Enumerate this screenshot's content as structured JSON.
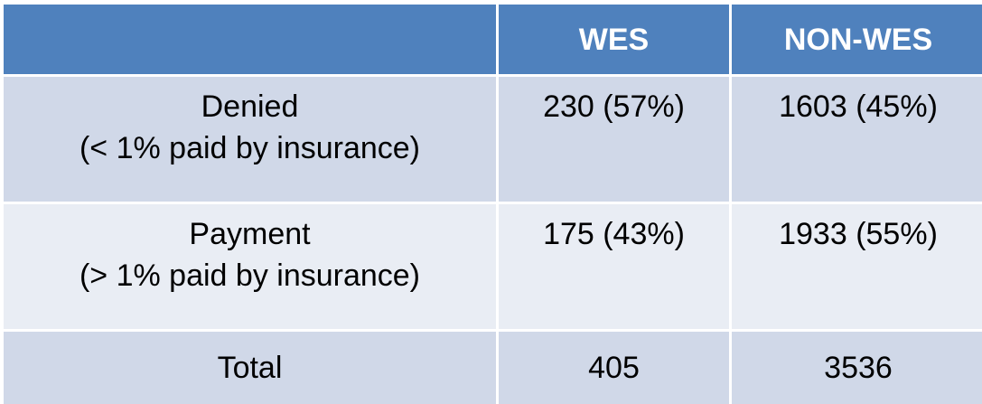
{
  "table": {
    "header": {
      "corner": "",
      "col1": "WES",
      "col2": "NON-WES"
    },
    "rows": [
      {
        "label_line1": "Denied",
        "label_line2": "(< 1% paid by insurance)",
        "wes": "230 (57%)",
        "non_wes": "1603 (45%)"
      },
      {
        "label_line1": "Payment",
        "label_line2": "(> 1% paid by insurance)",
        "wes": "175 (43%)",
        "non_wes": "1933 (55%)"
      },
      {
        "label": "Total",
        "wes": "405",
        "non_wes": "3536"
      }
    ]
  }
}
